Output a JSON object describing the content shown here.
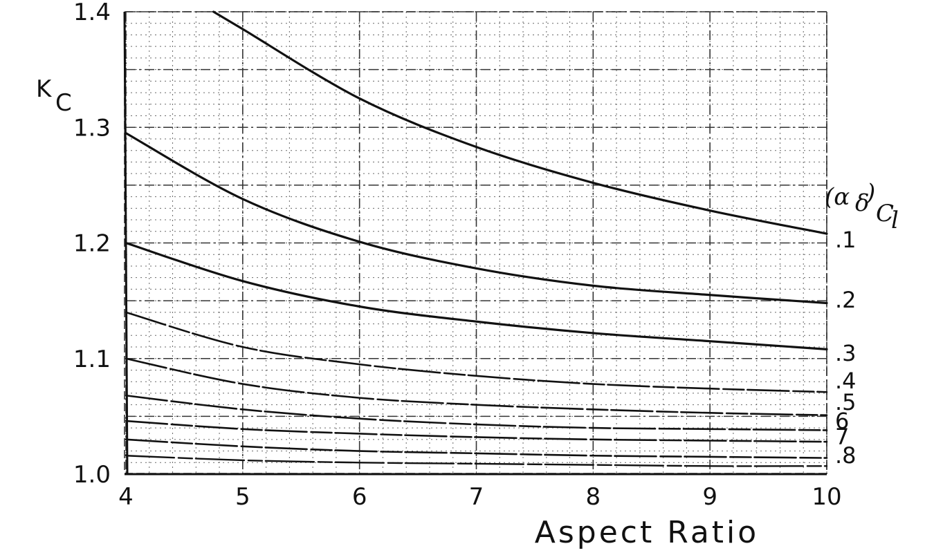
{
  "chart_data": {
    "type": "line",
    "title": "",
    "xlabel": "Aspect Ratio",
    "ylabel": "K",
    "ylabel_sub": "C",
    "xlim": [
      4,
      10
    ],
    "ylim": [
      1.0,
      1.4
    ],
    "x_ticks": [
      "4",
      "5",
      "6",
      "7",
      "8",
      "9",
      "10"
    ],
    "y_ticks": [
      "1.0",
      "1.1",
      "1.2",
      "1.3",
      "1.4"
    ],
    "grid": true,
    "legend": {
      "title_main": "(α",
      "title_sub1": "δ",
      "title_close": ")",
      "title_sub2": "C",
      "title_sub3": "l",
      "placement": "right"
    },
    "series": [
      {
        "name": ".1",
        "x": [
          4.75,
          5.0,
          6.0,
          7.0,
          8.0,
          9.0,
          10.0
        ],
        "y": [
          1.4,
          1.385,
          1.325,
          1.283,
          1.252,
          1.228,
          1.208
        ]
      },
      {
        "name": ".2",
        "x": [
          4.0,
          5.0,
          6.0,
          7.0,
          8.0,
          9.0,
          10.0
        ],
        "y": [
          1.295,
          1.238,
          1.201,
          1.178,
          1.163,
          1.155,
          1.148
        ]
      },
      {
        "name": ".3",
        "x": [
          4.0,
          5.0,
          6.0,
          7.0,
          8.0,
          9.0,
          10.0
        ],
        "y": [
          1.2,
          1.167,
          1.145,
          1.132,
          1.122,
          1.115,
          1.108
        ]
      },
      {
        "name": ".4",
        "x": [
          4.0,
          5.0,
          6.0,
          7.0,
          8.0,
          9.0,
          10.0
        ],
        "y": [
          1.14,
          1.11,
          1.095,
          1.085,
          1.078,
          1.074,
          1.071
        ]
      },
      {
        "name": ".5",
        "x": [
          4.0,
          5.0,
          6.0,
          7.0,
          8.0,
          9.0,
          10.0
        ],
        "y": [
          1.1,
          1.078,
          1.066,
          1.06,
          1.056,
          1.053,
          1.051
        ]
      },
      {
        "name": "6",
        "x": [
          4.0,
          5.0,
          6.0,
          7.0,
          8.0,
          9.0,
          10.0
        ],
        "y": [
          1.068,
          1.056,
          1.048,
          1.043,
          1.04,
          1.039,
          1.038
        ]
      },
      {
        "name": "7",
        "x": [
          4.0,
          5.0,
          6.0,
          7.0,
          8.0,
          9.0,
          10.0
        ],
        "y": [
          1.046,
          1.039,
          1.035,
          1.032,
          1.03,
          1.029,
          1.028
        ]
      },
      {
        "name": ".8",
        "x": [
          4.0,
          5.0,
          6.0,
          7.0,
          8.0,
          9.0,
          10.0
        ],
        "y": [
          1.03,
          1.024,
          1.02,
          1.018,
          1.016,
          1.015,
          1.014
        ]
      }
    ],
    "series_extra": [
      {
        "x": [
          4.0,
          5.0,
          6.0,
          7.0,
          8.0,
          9.0,
          10.0
        ],
        "y": [
          1.016,
          1.012,
          1.01,
          1.009,
          1.008,
          1.007,
          1.007
        ]
      }
    ]
  }
}
